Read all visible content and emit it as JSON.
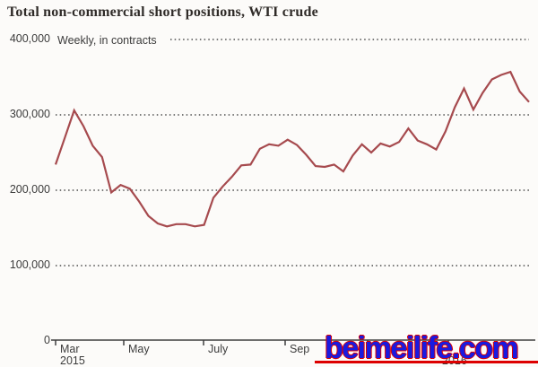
{
  "title": "Total non-commercial short positions, WTI crude",
  "subtitle": "Weekly, in contracts",
  "watermark": {
    "text": "beimeilife.com",
    "color": "#1a1adf",
    "outline_color": "#dd0000"
  },
  "colors": {
    "background": "#fcfbf9",
    "line": "#a64a4e",
    "grid": "#4d4d4d",
    "axis": "#3f3f3f",
    "label_text": "#3c3c3c",
    "title_text": "#2f2b28"
  },
  "chart_data": {
    "type": "line",
    "title": "Total non-commercial short positions, WTI crude",
    "subtitle": "Weekly, in contracts",
    "ylabel": "contracts",
    "ylim": [
      0,
      400000
    ],
    "grid": "horizontal dotted",
    "legend": "none",
    "y_ticks": [
      {
        "value": 400000,
        "label": "400,000"
      },
      {
        "value": 300000,
        "label": "300,000"
      },
      {
        "value": 200000,
        "label": "200,000"
      },
      {
        "value": 100000,
        "label": "100,000"
      },
      {
        "value": 0,
        "label": "0"
      }
    ],
    "x_ticks": [
      {
        "label": "Mar",
        "sublabel": "2015"
      },
      {
        "label": "May",
        "sublabel": ""
      },
      {
        "label": "July",
        "sublabel": ""
      },
      {
        "label": "Sep",
        "sublabel": ""
      },
      {
        "label": "",
        "sublabel": ""
      },
      {
        "label": "",
        "sublabel": "2016"
      }
    ],
    "series": [
      {
        "name": "Total non-commercial short positions, WTI crude",
        "unit": "contracts",
        "frequency": "weekly",
        "values": [
          234000,
          270000,
          306000,
          285000,
          259000,
          244000,
          197000,
          207000,
          202000,
          185000,
          166000,
          156000,
          152000,
          155000,
          155000,
          152000,
          154000,
          190000,
          205000,
          218000,
          233000,
          234000,
          255000,
          261000,
          259000,
          267000,
          260000,
          247000,
          232000,
          231000,
          234000,
          225000,
          246000,
          261000,
          250000,
          262000,
          258000,
          264000,
          282000,
          266000,
          261000,
          254000,
          278000,
          310000,
          335000,
          307000,
          329000,
          347000,
          353000,
          357000,
          331000,
          317000
        ]
      }
    ]
  }
}
